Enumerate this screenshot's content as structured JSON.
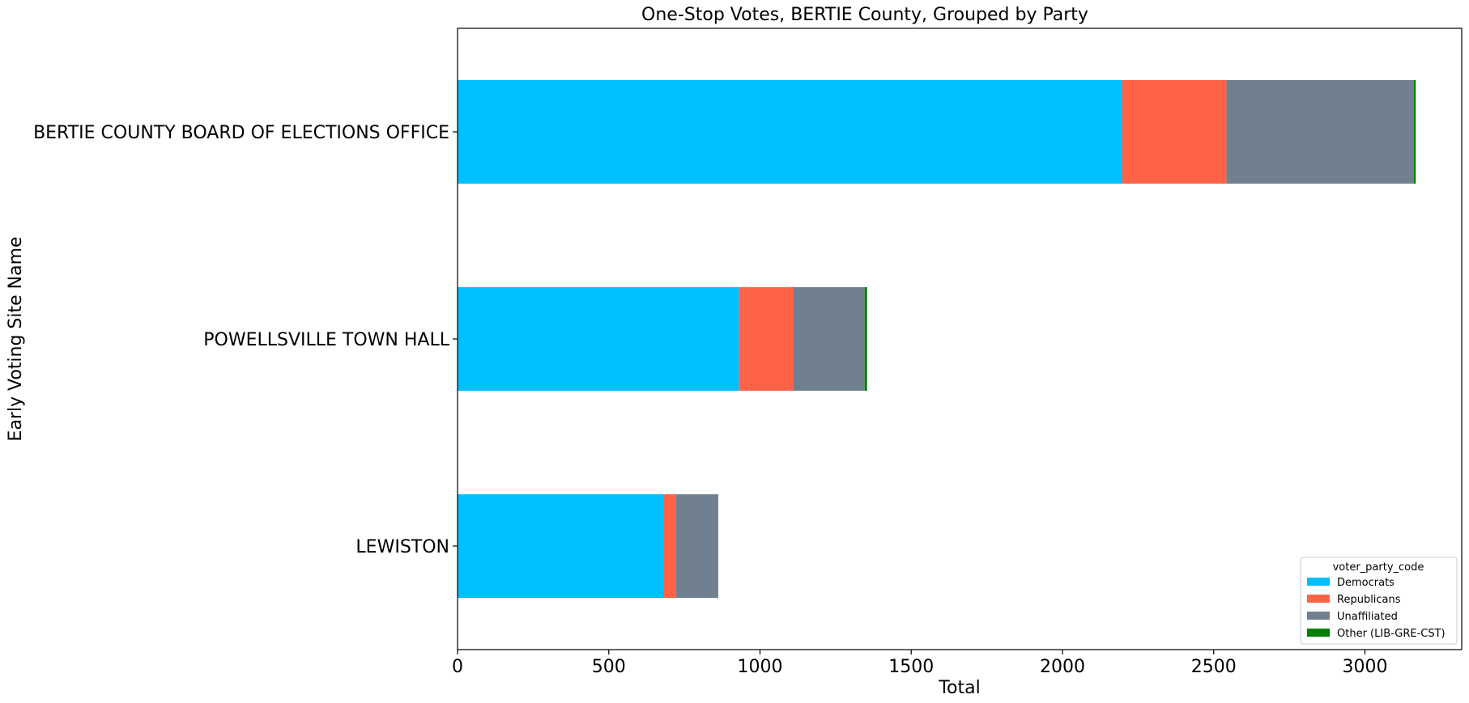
{
  "chart_data": {
    "type": "bar",
    "orientation": "horizontal",
    "stacked": true,
    "title": "One-Stop Votes, BERTIE County, Grouped by Party",
    "xlabel": "Total",
    "ylabel": "Early Voting Site Name",
    "xlim": [
      0,
      3320
    ],
    "xticks": [
      0,
      500,
      1000,
      1500,
      2000,
      2500,
      3000
    ],
    "categories": [
      "BERTIE COUNTY BOARD OF ELECTIONS OFFICE",
      "POWELLSVILLE TOWN HALL",
      "LEWISTON"
    ],
    "series": [
      {
        "name": "Democrats",
        "color": "#00bfff",
        "values": [
          2197,
          930,
          680
        ]
      },
      {
        "name": "Republicans",
        "color": "#ff6347",
        "values": [
          345,
          180,
          42
        ]
      },
      {
        "name": "Unaffiliated",
        "color": "#708090",
        "values": [
          620,
          236,
          140
        ]
      },
      {
        "name": "Other (LIB-GRE-CST)",
        "color": "#008000",
        "values": [
          6,
          8,
          0
        ]
      }
    ],
    "legend": {
      "title": "voter_party_code",
      "position": "lower right"
    },
    "grid": false
  }
}
